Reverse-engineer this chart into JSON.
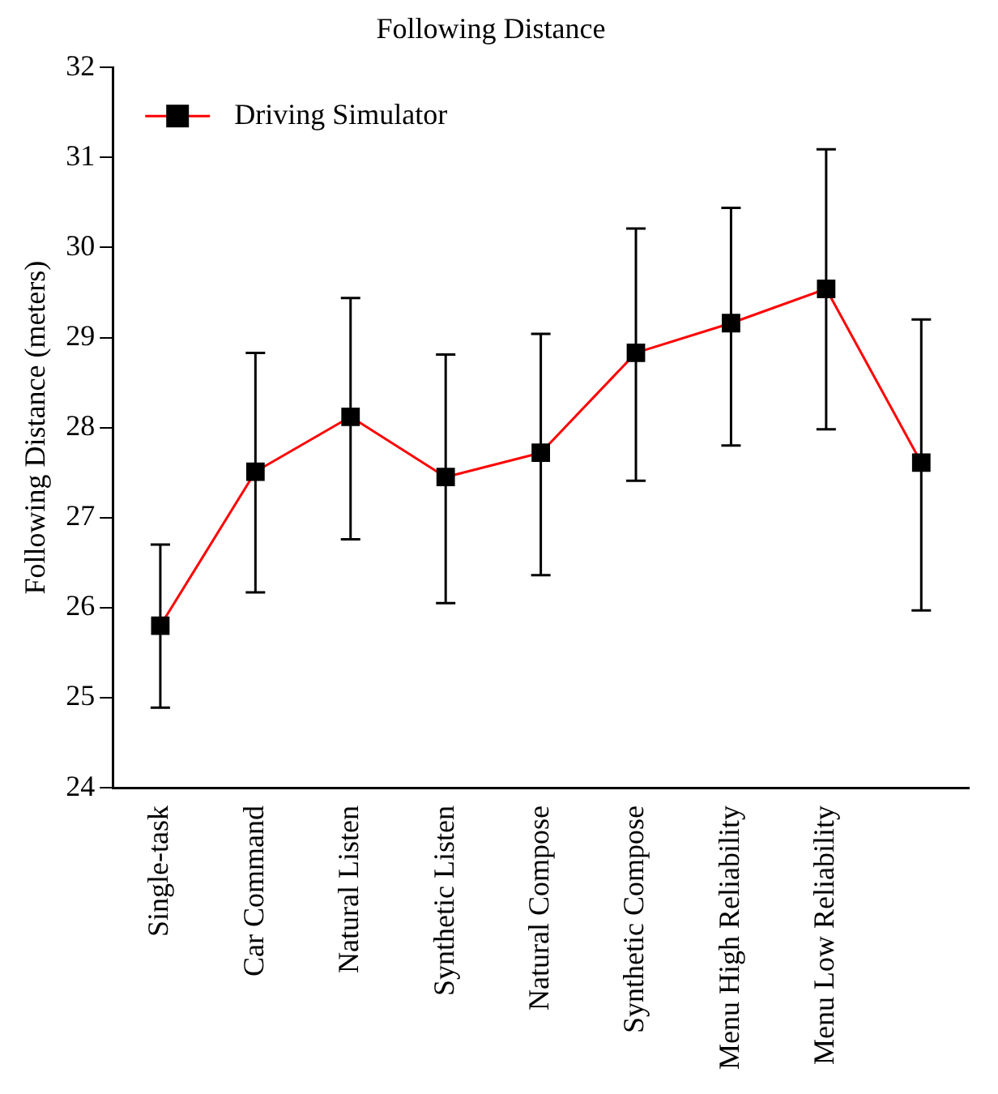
{
  "chart_data": {
    "type": "line",
    "title": "Following Distance",
    "ylabel": "Following Distance (meters)",
    "categories": [
      "Single-task",
      "Car Command",
      "Natural Listen",
      "Synthetic Listen",
      "Natural Compose",
      "Synthetic Compose",
      "Menu High Reliability",
      "Menu Low Reliability",
      null
    ],
    "series": [
      {
        "name": "Driving Simulator",
        "color": "#ff0000",
        "values": [
          25.8,
          27.51,
          28.12,
          27.45,
          27.72,
          28.83,
          29.16,
          29.54,
          27.61
        ],
        "errors": [
          [
            24.89,
            26.7
          ],
          [
            26.17,
            28.83
          ],
          [
            26.76,
            29.44
          ],
          [
            26.05,
            28.81
          ],
          [
            26.36,
            29.04
          ],
          [
            27.41,
            30.21
          ],
          [
            27.8,
            30.44
          ],
          [
            27.98,
            31.09
          ],
          [
            25.97,
            29.2
          ]
        ]
      }
    ],
    "ylim": [
      24,
      32
    ],
    "yticks": [
      24,
      25,
      26,
      27,
      28,
      29,
      30,
      31,
      32
    ],
    "grid": false,
    "legend": "top left",
    "marker": "square",
    "line_style": "solid"
  }
}
